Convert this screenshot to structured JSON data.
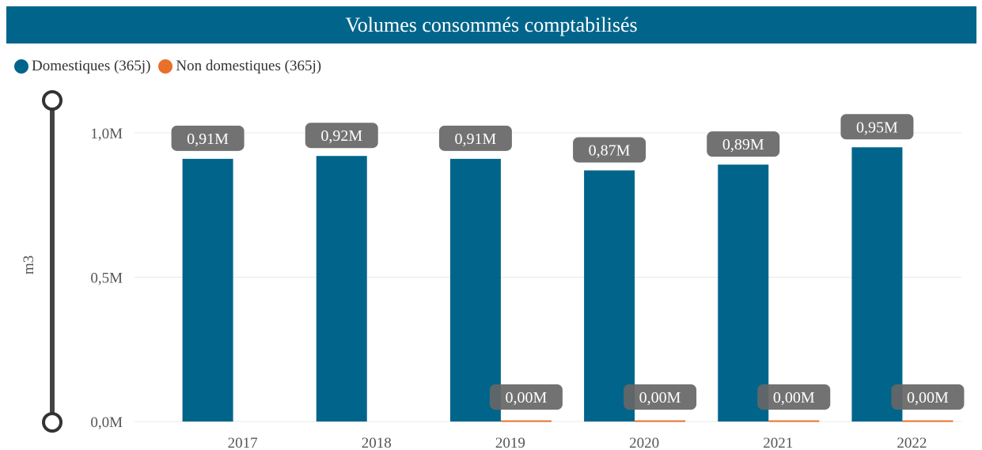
{
  "chart_data": {
    "type": "bar",
    "title": "Volumes consommés comptabilisés",
    "ylabel": "m3",
    "xlabel": "",
    "categories": [
      "2017",
      "2018",
      "2019",
      "2020",
      "2021",
      "2022"
    ],
    "series": [
      {
        "name": "Domestiques (365j)",
        "color": "#01658b",
        "values": [
          0.91,
          0.92,
          0.91,
          0.87,
          0.89,
          0.95
        ],
        "labels": [
          "0,91M",
          "0,92M",
          "0,91M",
          "0,87M",
          "0,89M",
          "0,95M"
        ]
      },
      {
        "name": "Non domestiques (365j)",
        "color": "#e8702a",
        "values": [
          null,
          null,
          0.004,
          0.004,
          0.004,
          0.004
        ],
        "labels": [
          "",
          "",
          "0,00M",
          "0,00M",
          "0,00M",
          "0,00M"
        ]
      }
    ],
    "yticks": [
      {
        "value": 0,
        "label": "0,0M"
      },
      {
        "value": 0.5,
        "label": "0,5M"
      },
      {
        "value": 1.0,
        "label": "1,0M"
      }
    ],
    "ylim": [
      0,
      1.0
    ],
    "unit": "millions",
    "grid": true,
    "legend_position": "top-left"
  }
}
